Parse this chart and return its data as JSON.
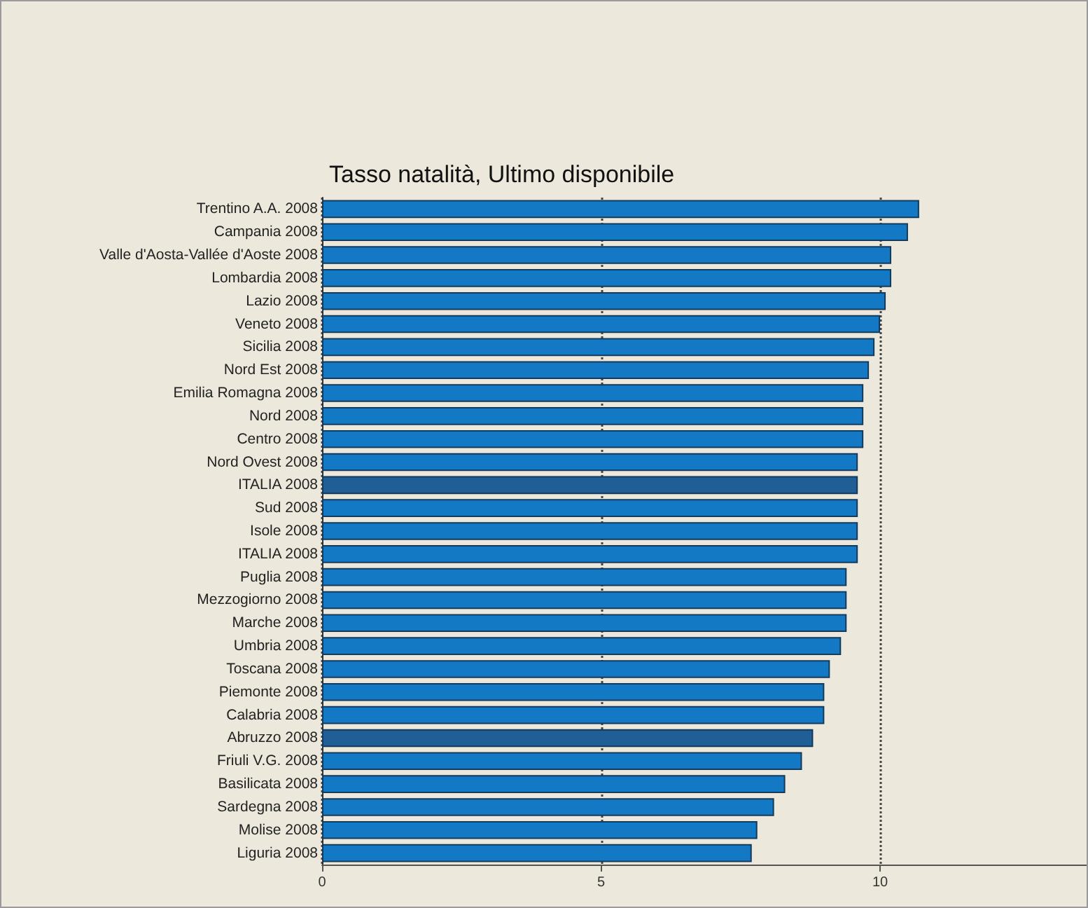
{
  "chart_data": {
    "type": "bar",
    "orientation": "horizontal",
    "title": "Tasso natalità, Ultimo disponibile",
    "categories": [
      "Trentino A.A. 2008",
      "Campania 2008",
      "Valle d'Aosta-Vallée d'Aoste 2008",
      "Lombardia 2008",
      "Lazio 2008",
      "Veneto 2008",
      "Sicilia 2008",
      "Nord Est 2008",
      "Emilia Romagna 2008",
      "Nord 2008",
      "Centro 2008",
      "Nord Ovest 2008",
      "ITALIA 2008",
      "Sud 2008",
      "Isole 2008",
      "ITALIA 2008",
      "Puglia 2008",
      "Mezzogiorno 2008",
      "Marche 2008",
      "Umbria 2008",
      "Toscana 2008",
      "Piemonte 2008",
      "Calabria 2008",
      "Abruzzo 2008",
      "Friuli V.G. 2008",
      "Basilicata 2008",
      "Sardegna 2008",
      "Molise 2008",
      "Liguria 2008"
    ],
    "values": [
      10.7,
      10.5,
      10.2,
      10.2,
      10.1,
      10.0,
      9.9,
      9.8,
      9.7,
      9.7,
      9.7,
      9.6,
      9.6,
      9.6,
      9.6,
      9.6,
      9.4,
      9.4,
      9.4,
      9.3,
      9.1,
      9.0,
      9.0,
      8.8,
      8.6,
      8.3,
      8.1,
      7.8,
      7.7
    ],
    "colors": [
      "#1479c4",
      "#1479c4",
      "#1479c4",
      "#1479c4",
      "#1479c4",
      "#1479c4",
      "#1479c4",
      "#1479c4",
      "#1479c4",
      "#1479c4",
      "#1479c4",
      "#1479c4",
      "#1f5f96",
      "#1479c4",
      "#1479c4",
      "#1479c4",
      "#1479c4",
      "#1479c4",
      "#1479c4",
      "#1479c4",
      "#1479c4",
      "#1479c4",
      "#1479c4",
      "#1f5f96",
      "#1479c4",
      "#1479c4",
      "#1479c4",
      "#1479c4",
      "#1479c4"
    ],
    "xlim": [
      0,
      13.7
    ],
    "xticks": [
      0,
      5,
      10
    ],
    "grid": "x"
  }
}
